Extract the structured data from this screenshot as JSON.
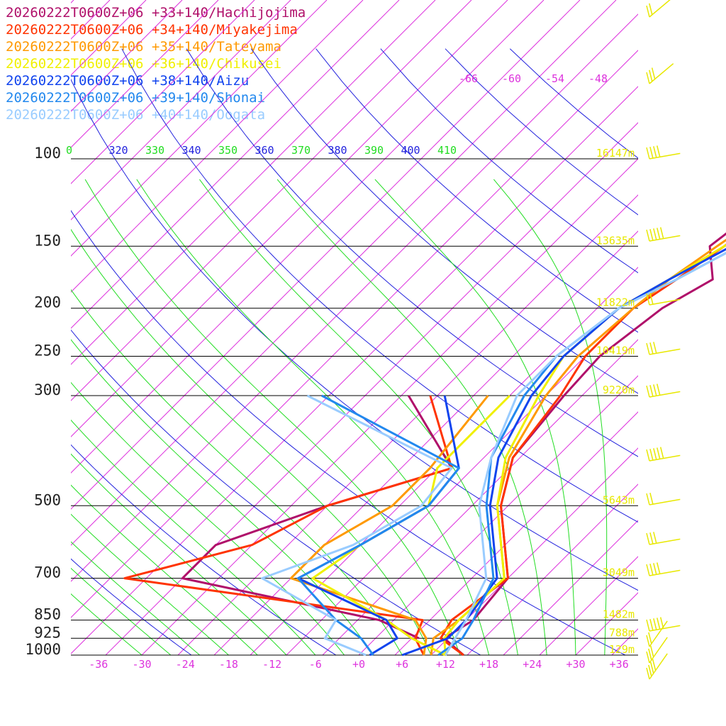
{
  "colors": {
    "isotherm": "#dd33dd",
    "dry_adiabat": "#2222dd",
    "moist_adiabat": "#22dd22",
    "height_label": "#e8e800",
    "barb": "#e8e800",
    "isobar": "#000000"
  },
  "chart_data": {
    "type": "line",
    "xlabel": "",
    "ylabel": "",
    "xlim": [
      -42,
      40
    ],
    "ylim": [
      1000,
      100
    ],
    "y_scale": "log",
    "grid": true,
    "x_ticks": [
      "-36",
      "-30",
      "-24",
      "-18",
      "-12",
      "-6",
      "+0",
      "+6",
      "+12",
      "+18",
      "+24",
      "+30",
      "+36"
    ],
    "pressure_levels": [
      {
        "p": 100,
        "label": "100",
        "height": "16147m"
      },
      {
        "p": 150,
        "label": "150",
        "height": "13635m"
      },
      {
        "p": 200,
        "label": "200",
        "height": "11822m"
      },
      {
        "p": 250,
        "label": "250",
        "height": "10419m"
      },
      {
        "p": 300,
        "label": "300",
        "height": "9220m"
      },
      {
        "p": 500,
        "label": "500",
        "height": "5643m"
      },
      {
        "p": 700,
        "label": "700",
        "height": "3049m"
      },
      {
        "p": 850,
        "label": "850",
        "height": "1482m"
      },
      {
        "p": 925,
        "label": "925",
        "height": "788m"
      },
      {
        "p": 1000,
        "label": "1000",
        "height": "129m"
      }
    ],
    "theta_labels": [
      {
        "text": "0",
        "color": "#22dd22"
      },
      {
        "text": "320",
        "color": "#2222dd"
      },
      {
        "text": "330",
        "color": "#22dd22"
      },
      {
        "text": "340",
        "color": "#2222dd"
      },
      {
        "text": "350",
        "color": "#22dd22"
      },
      {
        "text": "360",
        "color": "#2222dd"
      },
      {
        "text": "370",
        "color": "#22dd22"
      },
      {
        "text": "380",
        "color": "#2222dd"
      },
      {
        "text": "390",
        "color": "#22dd22"
      },
      {
        "text": "400",
        "color": "#2222dd"
      },
      {
        "text": "410",
        "color": "#22dd22"
      }
    ],
    "upper_isotherm_labels": [
      "-66",
      "-60",
      "-54",
      "-48"
    ],
    "series": [
      {
        "name": "20260222T0600Z+06 +33+140/Hachijojima",
        "color": "#b0106a",
        "temp": [
          [
            1000,
            14.5
          ],
          [
            925,
            9.5
          ],
          [
            850,
            11
          ],
          [
            700,
            10
          ],
          [
            500,
            -1
          ],
          [
            400,
            -6
          ],
          [
            300,
            -7.5
          ],
          [
            250,
            -8
          ],
          [
            200,
            -6
          ],
          [
            175,
            -3
          ],
          [
            150,
            -8
          ],
          [
            120,
            -6
          ],
          [
            100,
            -6
          ],
          [
            80,
            0
          ]
        ],
        "dew": [
          [
            925,
            6
          ],
          [
            850,
            -2
          ],
          [
            700,
            -35
          ],
          [
            600,
            -35
          ],
          [
            500,
            -25
          ],
          [
            420,
            -13
          ],
          [
            300,
            -29
          ]
        ]
      },
      {
        "name": "20260222T0600Z+06 +34+140/Miyakejima",
        "color": "#ff3300",
        "temp": [
          [
            1000,
            14.5
          ],
          [
            925,
            9
          ],
          [
            850,
            8
          ],
          [
            700,
            10
          ],
          [
            500,
            -1
          ],
          [
            400,
            -6
          ],
          [
            300,
            -8
          ],
          [
            250,
            -10
          ],
          [
            200,
            -10
          ],
          [
            175,
            -8
          ],
          [
            150,
            -6
          ],
          [
            120,
            -4
          ],
          [
            100,
            -4
          ],
          [
            80,
            0
          ]
        ],
        "dew": [
          [
            1000,
            9
          ],
          [
            925,
            5.5
          ],
          [
            850,
            4
          ],
          [
            700,
            -43
          ],
          [
            600,
            -30
          ],
          [
            500,
            -25
          ],
          [
            420,
            -13
          ],
          [
            300,
            -26
          ]
        ]
      },
      {
        "name": "20260222T0600Z+06 +35+140/Tateyama",
        "color": "#ff9900",
        "temp": [
          [
            1000,
            10
          ],
          [
            925,
            8
          ],
          [
            850,
            9
          ],
          [
            700,
            9.5
          ],
          [
            500,
            -1.5
          ],
          [
            400,
            -6.5
          ],
          [
            300,
            -10
          ],
          [
            250,
            -11
          ],
          [
            200,
            -10
          ],
          [
            175,
            -9
          ],
          [
            150,
            -7
          ],
          [
            120,
            -4
          ],
          [
            100,
            -2
          ],
          [
            80,
            3
          ]
        ],
        "dew": [
          [
            1000,
            9
          ],
          [
            925,
            7
          ],
          [
            850,
            3
          ],
          [
            700,
            -20
          ],
          [
            600,
            -20
          ],
          [
            500,
            -16
          ],
          [
            420,
            -16
          ],
          [
            300,
            -18
          ]
        ]
      },
      {
        "name": "20260222T0600Z+06 +36+140/Chikusei",
        "color": "#f0f000",
        "temp": [
          [
            1000,
            12
          ],
          [
            925,
            9.5
          ],
          [
            850,
            9
          ],
          [
            700,
            9.5
          ],
          [
            500,
            -1.5
          ],
          [
            400,
            -7
          ],
          [
            300,
            -11
          ],
          [
            250,
            -13
          ],
          [
            200,
            -12
          ],
          [
            175,
            -9
          ],
          [
            150,
            -6
          ],
          [
            120,
            -3
          ],
          [
            100,
            -1
          ],
          [
            80,
            4
          ]
        ],
        "dew": [
          [
            1000,
            12
          ],
          [
            925,
            5
          ],
          [
            850,
            -1
          ],
          [
            700,
            -17
          ],
          [
            600,
            -15
          ],
          [
            500,
            -11
          ],
          [
            420,
            -15
          ],
          [
            300,
            -15
          ]
        ]
      },
      {
        "name": "20260222T0600Z+06 +38+140/Aizu",
        "color": "#1144ee",
        "temp": [
          [
            1000,
            6
          ],
          [
            925,
            10
          ],
          [
            850,
            10
          ],
          [
            700,
            8.5
          ],
          [
            500,
            -2.5
          ],
          [
            400,
            -8
          ],
          [
            300,
            -12
          ],
          [
            250,
            -13
          ],
          [
            200,
            -12
          ],
          [
            175,
            -9
          ],
          [
            150,
            -5
          ],
          [
            120,
            -2
          ],
          [
            100,
            1
          ],
          [
            80,
            5
          ]
        ],
        "dew": [
          [
            1000,
            1.5
          ],
          [
            925,
            3
          ],
          [
            850,
            -1
          ],
          [
            700,
            -19
          ],
          [
            600,
            -15
          ],
          [
            500,
            -11
          ],
          [
            420,
            -12
          ],
          [
            300,
            -24
          ]
        ]
      },
      {
        "name": "20260222T0600Z+06 +39+140/Shonai",
        "color": "#2288ee",
        "temp": [
          [
            1000,
            11
          ],
          [
            925,
            12
          ],
          [
            850,
            11
          ],
          [
            700,
            8
          ],
          [
            500,
            -3
          ],
          [
            400,
            -9
          ],
          [
            300,
            -13
          ],
          [
            250,
            -14
          ],
          [
            200,
            -12
          ],
          [
            175,
            -8
          ],
          [
            150,
            -4
          ],
          [
            120,
            -1
          ],
          [
            100,
            3
          ],
          [
            80,
            7
          ]
        ],
        "dew": [
          [
            1000,
            2
          ],
          [
            925,
            -2
          ],
          [
            850,
            -8
          ],
          [
            700,
            -19
          ],
          [
            600,
            -15
          ],
          [
            500,
            -11
          ],
          [
            420,
            -12
          ],
          [
            300,
            -41
          ]
        ]
      },
      {
        "name": "20260222T0600Z+06 +40+140/Oogata",
        "color": "#99ccff",
        "temp": [
          [
            1000,
            12
          ],
          [
            925,
            11
          ],
          [
            850,
            10
          ],
          [
            700,
            7
          ],
          [
            500,
            -4
          ],
          [
            400,
            -9
          ],
          [
            300,
            -14
          ],
          [
            250,
            -14
          ],
          [
            200,
            -12
          ],
          [
            175,
            -8
          ],
          [
            150,
            -4
          ],
          [
            120,
            -1
          ],
          [
            100,
            4
          ],
          [
            80,
            9
          ]
        ],
        "dew": [
          [
            1000,
            1
          ],
          [
            925,
            -7
          ],
          [
            850,
            -8
          ],
          [
            700,
            -24
          ],
          [
            600,
            -16
          ],
          [
            500,
            -12
          ],
          [
            420,
            -13
          ],
          [
            300,
            -43
          ]
        ]
      }
    ]
  }
}
